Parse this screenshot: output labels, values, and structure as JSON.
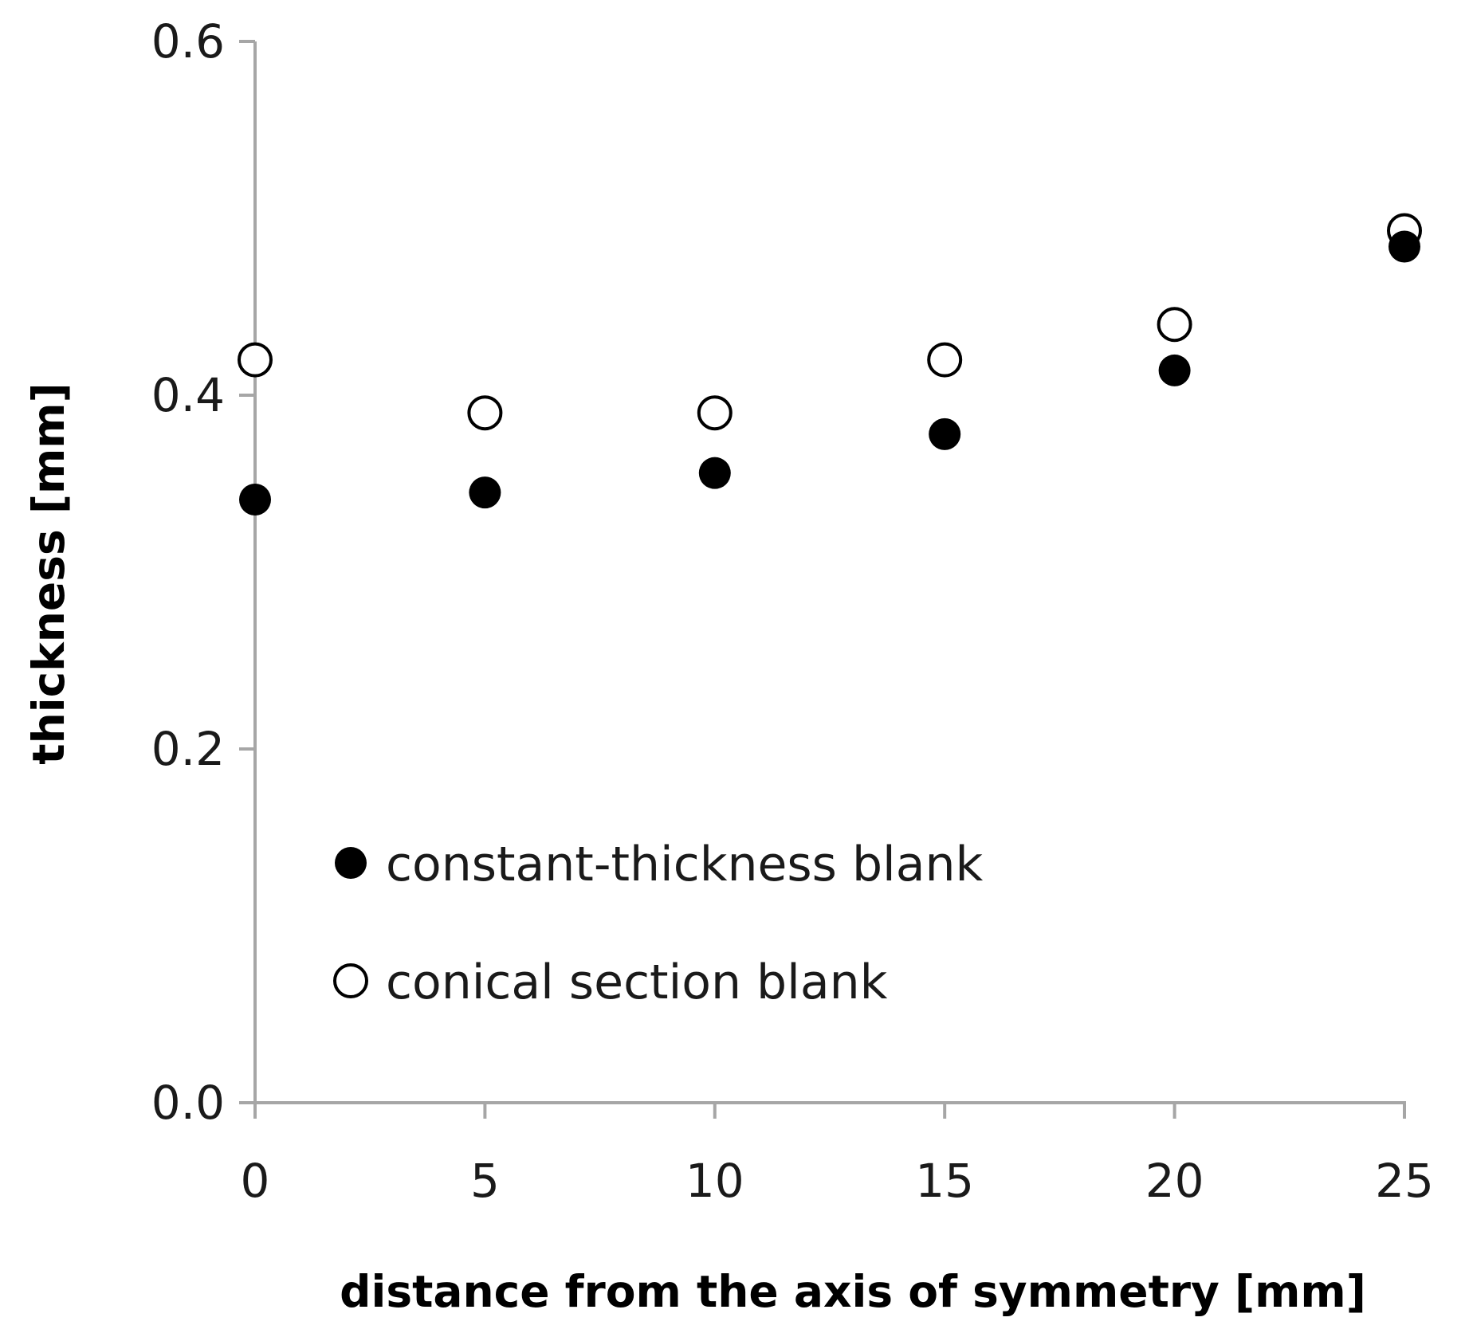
{
  "chart_data": {
    "type": "scatter",
    "xlabel": "distance from the axis of symmetry [mm]",
    "ylabel": "thickness [mm]",
    "xlim": [
      0,
      25
    ],
    "ylim": [
      0,
      0.6
    ],
    "x_ticks": [
      "0",
      "5",
      "10",
      "15",
      "20",
      "25"
    ],
    "y_ticks": [
      "0.0",
      "0.2",
      "0.4",
      "0.6"
    ],
    "x_tick_values": [
      0,
      5,
      10,
      15,
      20,
      25
    ],
    "y_tick_values": [
      0,
      0.2,
      0.4,
      0.6
    ],
    "grid": false,
    "legend_position": "lower-left",
    "series": [
      {
        "name": "constant-thickness blank",
        "marker": "filled-circle",
        "color": "#000000",
        "x": [
          0,
          5,
          10,
          15,
          20,
          25
        ],
        "y": [
          0.341,
          0.345,
          0.356,
          0.378,
          0.414,
          0.484
        ]
      },
      {
        "name": "conical section blank",
        "marker": "open-circle",
        "color": "#000000",
        "x": [
          0,
          5,
          10,
          15,
          20,
          25
        ],
        "y": [
          0.42,
          0.39,
          0.39,
          0.42,
          0.44,
          0.493
        ]
      }
    ],
    "colors": {
      "axis": "#a6a6a6",
      "text": "#1a1a1a"
    }
  }
}
